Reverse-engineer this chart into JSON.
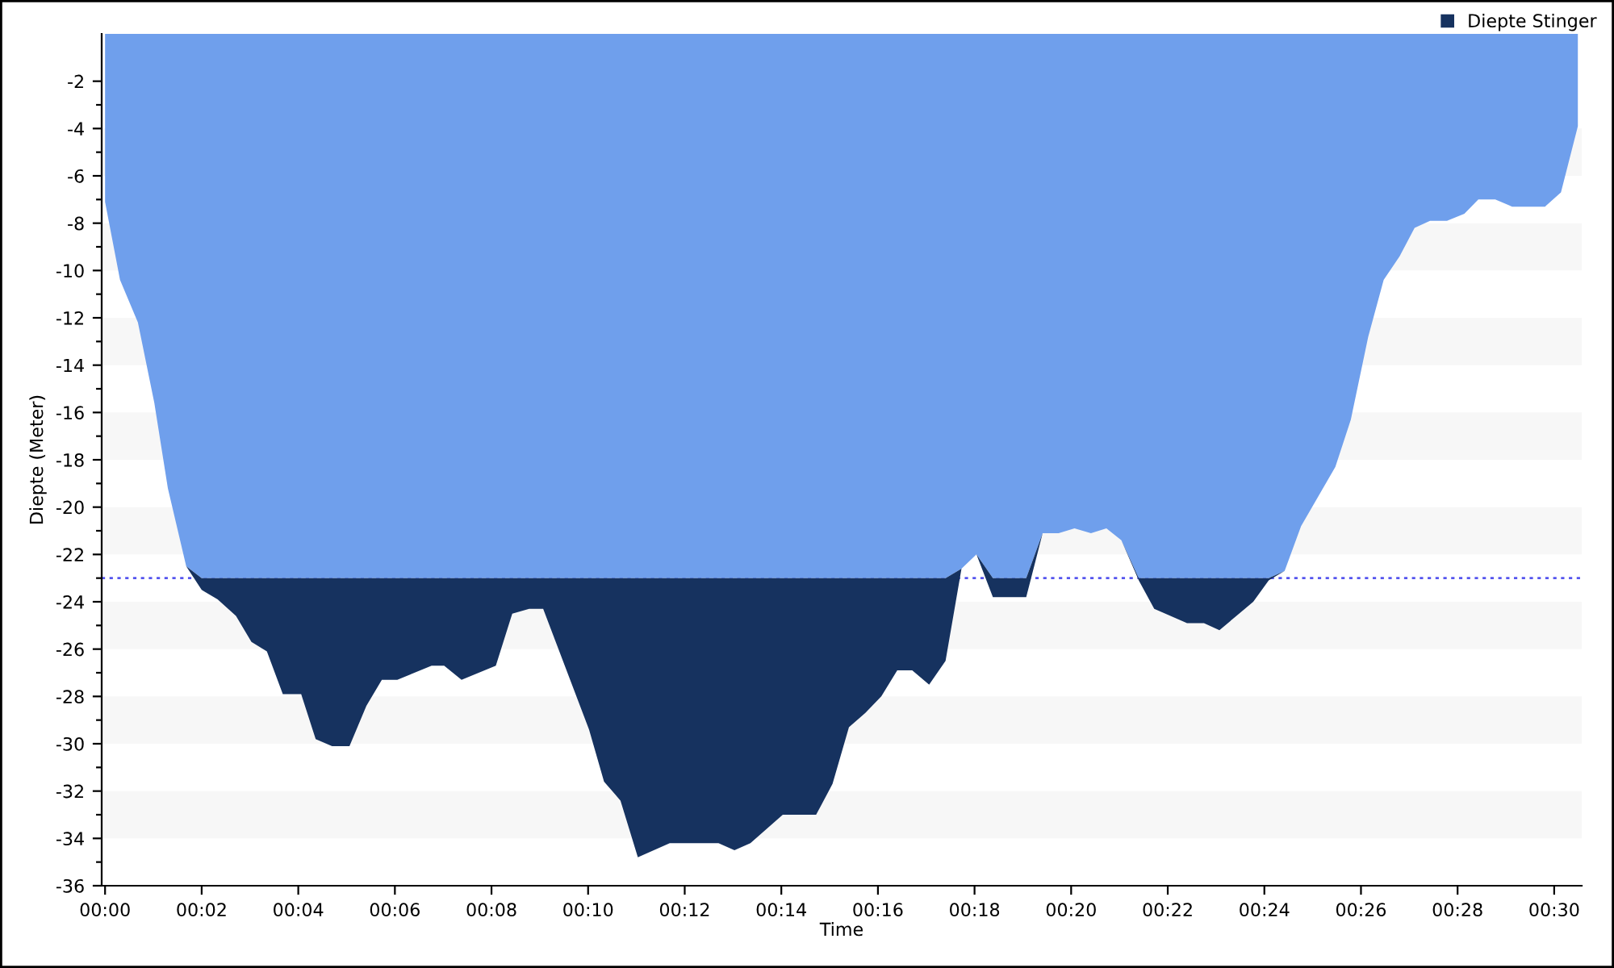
{
  "chart_data": {
    "type": "area",
    "stacked": true,
    "xlabel": "Time",
    "ylabel": "Diepte (Meter)",
    "legend": "top right",
    "xlim": [
      -0.07,
      30.57
    ],
    "ylim": [
      -36,
      0
    ],
    "xticks": [
      {
        "value": 0,
        "label": "00:00"
      },
      {
        "value": 2,
        "label": "00:02"
      },
      {
        "value": 4,
        "label": "00:04"
      },
      {
        "value": 6,
        "label": "00:06"
      },
      {
        "value": 8,
        "label": "00:08"
      },
      {
        "value": 10,
        "label": "00:10"
      },
      {
        "value": 12,
        "label": "00:12"
      },
      {
        "value": 14,
        "label": "00:14"
      },
      {
        "value": 16,
        "label": "00:16"
      },
      {
        "value": 18,
        "label": "00:18"
      },
      {
        "value": 20,
        "label": "00:20"
      },
      {
        "value": 22,
        "label": "00:22"
      },
      {
        "value": 24,
        "label": "00:24"
      },
      {
        "value": 26,
        "label": "00:26"
      },
      {
        "value": 28,
        "label": "00:28"
      },
      {
        "value": 30,
        "label": "00:30"
      }
    ],
    "yticks": [
      -2,
      {
        "value": -3,
        "label": null
      },
      -4,
      {
        "value": -5,
        "label": null
      },
      -6,
      {
        "value": -7,
        "label": null
      },
      -8,
      {
        "value": -9,
        "label": null
      },
      -10,
      {
        "value": -11,
        "label": null
      },
      -12,
      {
        "value": -13,
        "label": null
      },
      -14,
      {
        "value": -15,
        "label": null
      },
      -16,
      {
        "value": -17,
        "label": null
      },
      -18,
      {
        "value": -19,
        "label": null
      },
      -20,
      {
        "value": -21,
        "label": null
      },
      -22,
      {
        "value": -23,
        "label": null
      },
      -24,
      {
        "value": -25,
        "label": null
      },
      -26,
      {
        "value": -27,
        "label": null
      },
      -28,
      {
        "value": -29,
        "label": null
      },
      -30,
      {
        "value": -31,
        "label": null
      },
      -32,
      {
        "value": -33,
        "label": null
      },
      -34,
      {
        "value": -35,
        "label": null
      },
      -36
    ],
    "ref_lines": [
      {
        "axis": "y",
        "value": -23,
        "label": null,
        "color": "#5555ee",
        "line_style": "dotted"
      }
    ],
    "bands": [
      {
        "axis": "y",
        "from": -6,
        "to": -4,
        "label": null,
        "color": "#f7f7f7"
      },
      {
        "axis": "y",
        "from": -10,
        "to": -8,
        "label": null,
        "color": "#f7f7f7"
      },
      {
        "axis": "y",
        "from": -14,
        "to": -12,
        "label": null,
        "color": "#f7f7f7"
      },
      {
        "axis": "y",
        "from": -18,
        "to": -16,
        "label": null,
        "color": "#f7f7f7"
      },
      {
        "axis": "y",
        "from": -22,
        "to": -20,
        "label": null,
        "color": "#f7f7f7"
      },
      {
        "axis": "y",
        "from": -26,
        "to": -24,
        "label": null,
        "color": "#f7f7f7"
      },
      {
        "axis": "y",
        "from": -30,
        "to": -28,
        "label": null,
        "color": "#f7f7f7"
      },
      {
        "axis": "y",
        "from": -34,
        "to": -32,
        "label": null,
        "color": "#f7f7f7"
      }
    ],
    "x": [
      0.0,
      0.31,
      0.68,
      1.02,
      1.3,
      1.68,
      2.0,
      2.33,
      2.71,
      3.03,
      3.35,
      3.68,
      4.06,
      4.36,
      4.7,
      5.06,
      5.41,
      5.73,
      6.05,
      6.76,
      7.02,
      7.38,
      8.09,
      8.43,
      8.78,
      9.07,
      10.02,
      10.33,
      10.67,
      11.03,
      11.69,
      12.7,
      13.03,
      13.36,
      14.03,
      14.72,
      15.06,
      15.4,
      15.74,
      16.07,
      16.4,
      16.71,
      17.06,
      17.4,
      17.73,
      18.04,
      18.38,
      19.07,
      19.41,
      19.74,
      20.07,
      20.41,
      20.73,
      21.04,
      21.4,
      21.72,
      22.4,
      22.75,
      23.07,
      23.77,
      24.09,
      24.42,
      24.76,
      25.47,
      25.79,
      26.15,
      26.47,
      26.8,
      27.11,
      27.43,
      27.78,
      28.14,
      28.43,
      28.78,
      29.13,
      29.81,
      30.14,
      30.49
    ],
    "series": [
      {
        "color": "#6f9fec",
        "values": [
          -7.1,
          -10.4,
          -12.2,
          -15.6,
          -19.2,
          -22.5,
          -23,
          -23,
          -23,
          -23,
          -23,
          -23,
          -23,
          -23,
          -23,
          -23,
          -23,
          -23,
          -23,
          -23,
          -23,
          -23,
          -23,
          -23,
          -23,
          -23,
          -23,
          -23,
          -23,
          -23,
          -23,
          -23,
          -23,
          -23,
          -23,
          -23,
          -23,
          -23,
          -23,
          -23,
          -23,
          -23,
          -23,
          -23,
          -22.6,
          -22.0,
          -23,
          -23,
          -21.1,
          -21.1,
          -20.9,
          -21.1,
          -20.9,
          -21.4,
          -23,
          -23,
          -23,
          -23,
          -23,
          -23,
          -23,
          -22.7,
          -20.8,
          -18.3,
          -16.3,
          -12.8,
          -10.4,
          -9.4,
          -8.2,
          -7.9,
          -7.9,
          -7.6,
          -7.0,
          -7.0,
          -7.3,
          -7.3,
          -6.7,
          -3.9
        ]
      },
      {
        "name": "Diepte Stinger",
        "color": "#16325f",
        "values": [
          0,
          0,
          0,
          0,
          0,
          0,
          -0.5,
          -0.9,
          -1.6,
          -2.7,
          -3.1,
          -4.9,
          -4.9,
          -6.8,
          -7.1,
          -7.1,
          -5.4,
          -4.3,
          -4.3,
          -3.7,
          -3.7,
          -4.3,
          -3.7,
          -1.5,
          -1.3,
          -1.3,
          -6.4,
          -8.6,
          -9.4,
          -11.8,
          -11.2,
          -11.2,
          -11.5,
          -11.2,
          -10.0,
          -10.0,
          -8.7,
          -6.3,
          -5.7,
          -5.0,
          -3.9,
          -3.9,
          -4.5,
          -3.5,
          0,
          0,
          -0.8,
          -0.8,
          0,
          0,
          0,
          0,
          0,
          0,
          -0.1,
          -1.3,
          -1.9,
          -1.9,
          -2.2,
          -1.0,
          -0.1,
          0,
          0,
          0,
          0,
          0,
          0,
          0,
          0,
          0,
          0,
          0,
          0,
          0,
          0,
          0,
          0,
          0
        ]
      }
    ]
  }
}
